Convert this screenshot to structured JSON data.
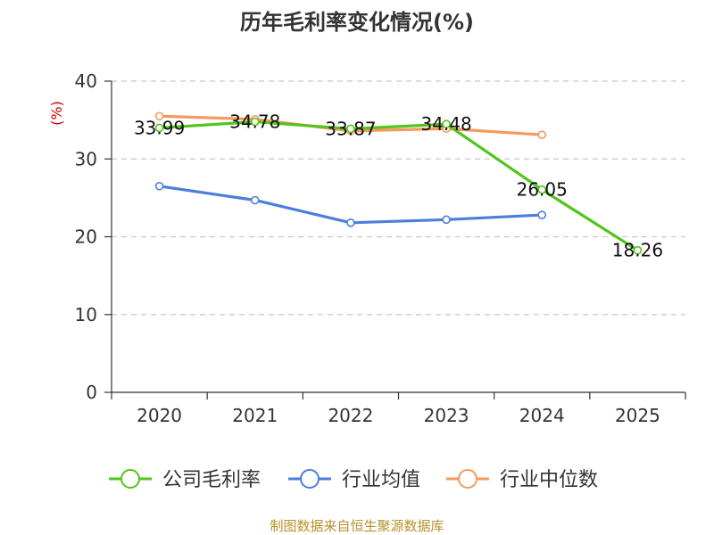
{
  "chart_data": {
    "type": "line",
    "title": "历年毛利率变化情况(%)",
    "ylabel": "(%)",
    "categories": [
      "2020",
      "2021",
      "2022",
      "2023",
      "2024",
      "2025"
    ],
    "ylim": [
      0,
      40
    ],
    "yticks": [
      "0",
      "10",
      "20",
      "30",
      "40"
    ],
    "grid": true,
    "legend_position": "bottom",
    "series": [
      {
        "name": "公司毛利率",
        "color": "#52c41a",
        "values": [
          33.99,
          34.78,
          33.87,
          34.48,
          26.05,
          18.26
        ],
        "labels": [
          "33.99",
          "34.78",
          "33.87",
          "34.48",
          "26.05",
          "18.26"
        ]
      },
      {
        "name": "行业均值",
        "color": "#4a7fdc",
        "values": [
          26.5,
          24.7,
          21.8,
          22.2,
          22.8,
          null
        ]
      },
      {
        "name": "行业中位数",
        "color": "#f59a5f",
        "values": [
          35.5,
          35.1,
          33.6,
          33.9,
          33.1,
          null
        ]
      }
    ],
    "source": "制图数据来自恒生聚源数据库"
  }
}
